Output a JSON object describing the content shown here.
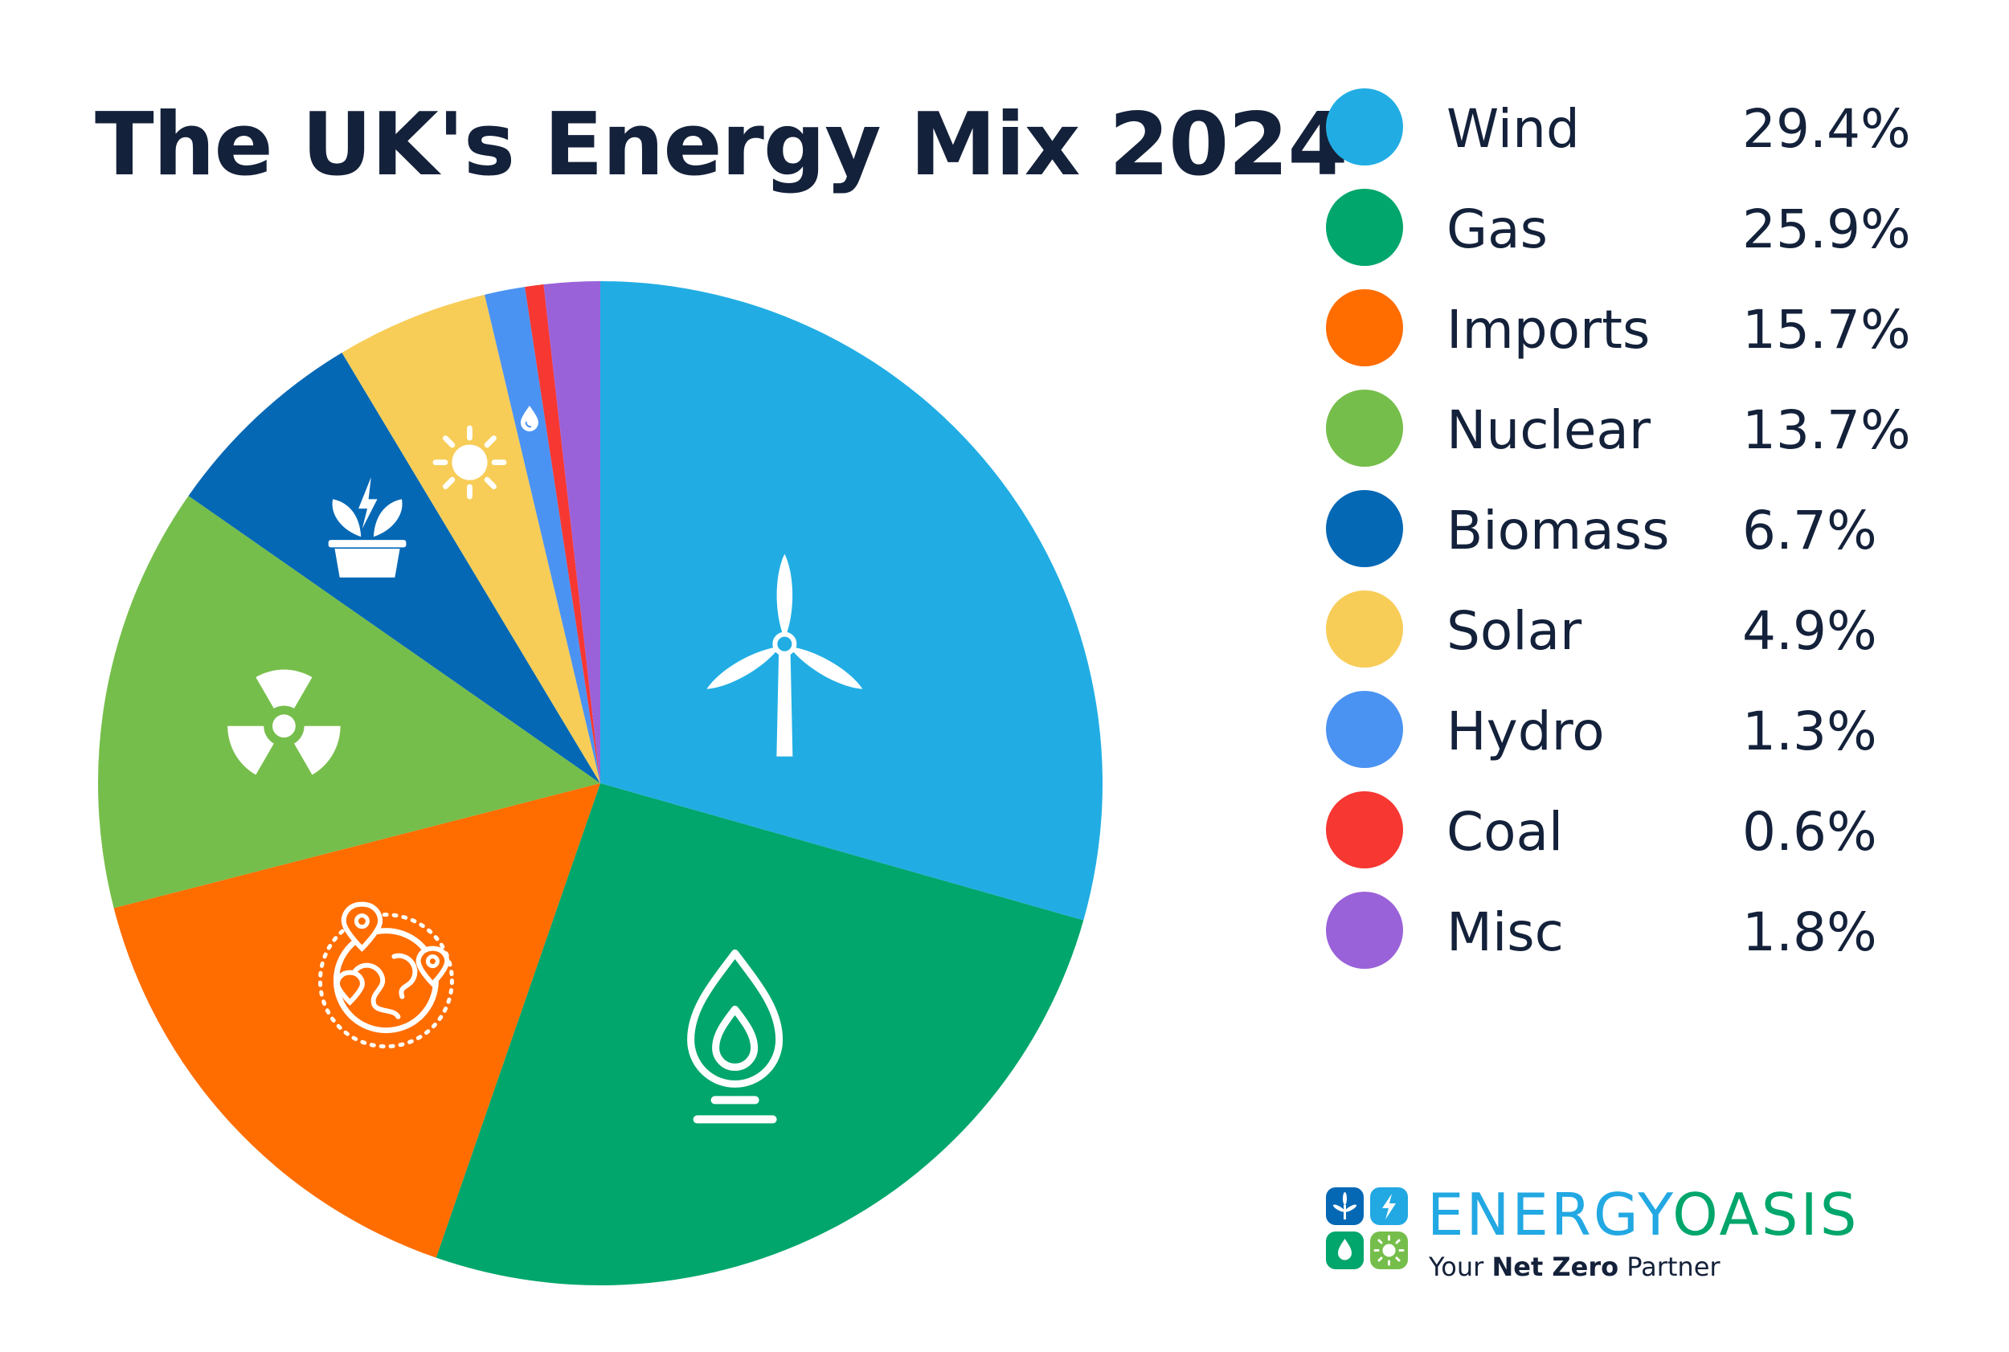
{
  "chart_data": {
    "type": "pie",
    "title": "The UK's Energy Mix 2024",
    "categories": [
      "Wind",
      "Gas",
      "Imports",
      "Nuclear",
      "Biomass",
      "Solar",
      "Hydro",
      "Coal",
      "Misc"
    ],
    "values": [
      29.4,
      25.9,
      15.7,
      13.7,
      6.7,
      4.9,
      1.3,
      0.6,
      1.8
    ],
    "labels": [
      "29.4%",
      "25.9%",
      "15.7%",
      "13.7%",
      "6.7%",
      "4.9%",
      "1.3%",
      "0.6%",
      "1.8%"
    ],
    "colors": [
      "#21ade3",
      "#00a66b",
      "#ff6d00",
      "#76be4b",
      "#0568b5",
      "#f7cd58",
      "#4b93f2",
      "#f63732",
      "#9a62d9"
    ],
    "icons": [
      "wind-turbine-icon",
      "gas-flame-icon",
      "globe-location-icon",
      "radiation-icon",
      "biomass-plant-icon",
      "sun-icon",
      "water-drop-icon",
      "",
      ""
    ],
    "legend": "right",
    "start_angle_deg": 0,
    "direction": "clockwise"
  },
  "brand": {
    "name_part1": "ENERGY",
    "name_part2": "OASIS",
    "tagline_pre": "Your ",
    "tagline_bold": "Net Zero",
    "tagline_post": " Partner",
    "color_primary": "#22a8e2",
    "color_secondary": "#00a66b"
  }
}
